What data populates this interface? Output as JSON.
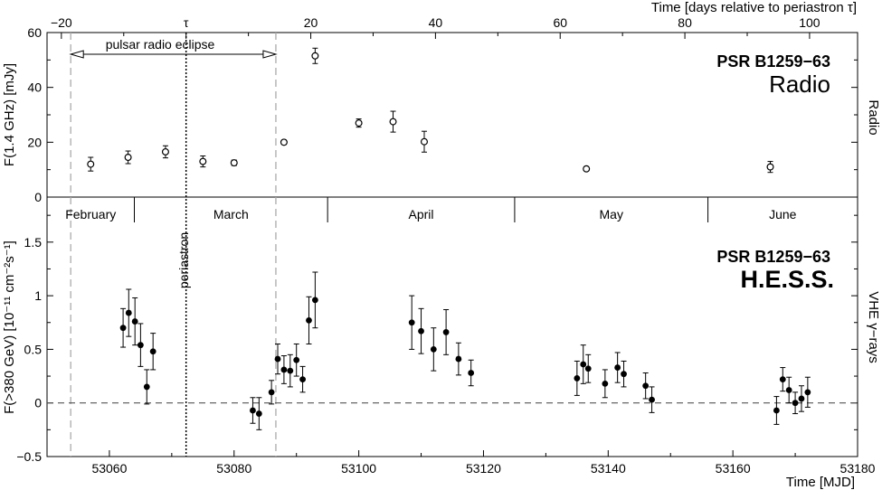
{
  "chart_data": [
    {
      "type": "scatter",
      "panel": "radio",
      "source_name": "PSR B1259−63",
      "instrument_label": "Radio",
      "ylabel": "F(1.4 GHz) [mJy]",
      "side_label": "Radio",
      "ylim": [
        0,
        60
      ],
      "xlim": [
        53050,
        53180
      ],
      "y_ticks": [
        0,
        20,
        40,
        60
      ],
      "top_axis": {
        "label": "Time [days relative to periastron τ]",
        "ticks": [
          {
            "label": "−20",
            "value": -20
          },
          {
            "label": "τ",
            "value": 0
          },
          {
            "label": "20",
            "value": 20
          },
          {
            "label": "40",
            "value": 40
          },
          {
            "label": "60",
            "value": 60
          },
          {
            "label": "80",
            "value": 80
          },
          {
            "label": "100",
            "value": 100
          }
        ],
        "periastron_mjd": 53072.3
      },
      "eclipse_label": "pulsar radio eclipse",
      "eclipse_range": [
        53053.8,
        53086.7
      ],
      "series": [
        {
          "marker": "open-circle",
          "points": [
            {
              "x": 53057.0,
              "y": 12.0,
              "err": 2.5
            },
            {
              "x": 53063.0,
              "y": 14.5,
              "err": 2.3
            },
            {
              "x": 53069.0,
              "y": 16.5,
              "err": 2.2
            },
            {
              "x": 53075.0,
              "y": 13.0,
              "err": 2.0
            },
            {
              "x": 53080.0,
              "y": 12.5,
              "err": 1.0
            },
            {
              "x": 53088.0,
              "y": 20.0,
              "err": 0.8
            },
            {
              "x": 53093.0,
              "y": 51.5,
              "err": 2.8
            },
            {
              "x": 53100.0,
              "y": 27.0,
              "err": 1.5
            },
            {
              "x": 53105.5,
              "y": 27.5,
              "err": 3.8
            },
            {
              "x": 53110.5,
              "y": 20.2,
              "err": 3.8
            },
            {
              "x": 53136.5,
              "y": 10.3,
              "err": 0.6
            },
            {
              "x": 53166.0,
              "y": 11.0,
              "err": 2.0
            }
          ]
        }
      ]
    },
    {
      "type": "scatter",
      "panel": "hess",
      "source_name": "PSR B1259−63",
      "instrument_label": "H.E.S.S.",
      "ylabel": "F(>380 GeV) [10⁻¹¹ cm⁻²s⁻¹]",
      "side_label": "VHE γ−rays",
      "xlabel": "Time [MJD]",
      "ylim": [
        -0.5,
        1.92
      ],
      "xlim": [
        53050,
        53180
      ],
      "y_ticks": [
        {
          "label": "−0.5",
          "value": -0.5
        },
        {
          "label": "0",
          "value": 0
        },
        {
          "label": "0.5",
          "value": 0.5
        },
        {
          "label": "1",
          "value": 1
        },
        {
          "label": "1.5",
          "value": 1.5
        }
      ],
      "x_ticks": [
        53060,
        53080,
        53100,
        53120,
        53140,
        53160,
        53180
      ],
      "months": [
        {
          "name": "February",
          "end": 53064.0
        },
        {
          "name": "March",
          "end": 53095.0
        },
        {
          "name": "April",
          "end": 53125.0
        },
        {
          "name": "May",
          "end": 53156.0
        },
        {
          "name": "June",
          "end": null
        }
      ],
      "periastron_label": "periastron",
      "series": [
        {
          "marker": "filled-circle",
          "points": [
            {
              "x": 53062.2,
              "y": 0.7,
              "err": 0.18
            },
            {
              "x": 53063.1,
              "y": 0.84,
              "err": 0.22
            },
            {
              "x": 53064.1,
              "y": 0.76,
              "err": 0.22
            },
            {
              "x": 53065.0,
              "y": 0.54,
              "err": 0.2
            },
            {
              "x": 53066.0,
              "y": 0.15,
              "err": 0.16
            },
            {
              "x": 53067.0,
              "y": 0.48,
              "err": 0.17
            },
            {
              "x": 53083.0,
              "y": -0.07,
              "err": 0.12
            },
            {
              "x": 53084.0,
              "y": -0.1,
              "err": 0.15
            },
            {
              "x": 53086.0,
              "y": 0.1,
              "err": 0.11
            },
            {
              "x": 53087.0,
              "y": 0.41,
              "err": 0.14
            },
            {
              "x": 53088.0,
              "y": 0.31,
              "err": 0.13
            },
            {
              "x": 53089.0,
              "y": 0.3,
              "err": 0.15
            },
            {
              "x": 53090.0,
              "y": 0.4,
              "err": 0.15
            },
            {
              "x": 53091.0,
              "y": 0.22,
              "err": 0.12
            },
            {
              "x": 53092.0,
              "y": 0.77,
              "err": 0.22
            },
            {
              "x": 53093.0,
              "y": 0.96,
              "err": 0.26
            },
            {
              "x": 53108.5,
              "y": 0.75,
              "err": 0.25
            },
            {
              "x": 53110.0,
              "y": 0.67,
              "err": 0.21
            },
            {
              "x": 53112.0,
              "y": 0.5,
              "err": 0.2
            },
            {
              "x": 53114.0,
              "y": 0.66,
              "err": 0.21
            },
            {
              "x": 53116.0,
              "y": 0.41,
              "err": 0.15
            },
            {
              "x": 53118.0,
              "y": 0.28,
              "err": 0.12
            },
            {
              "x": 53135.0,
              "y": 0.23,
              "err": 0.16
            },
            {
              "x": 53136.0,
              "y": 0.36,
              "err": 0.18
            },
            {
              "x": 53136.8,
              "y": 0.32,
              "err": 0.13
            },
            {
              "x": 53139.5,
              "y": 0.18,
              "err": 0.13
            },
            {
              "x": 53141.5,
              "y": 0.33,
              "err": 0.14
            },
            {
              "x": 53142.5,
              "y": 0.27,
              "err": 0.12
            },
            {
              "x": 53146.0,
              "y": 0.16,
              "err": 0.12
            },
            {
              "x": 53147.0,
              "y": 0.03,
              "err": 0.12
            },
            {
              "x": 53167.0,
              "y": -0.07,
              "err": 0.13
            },
            {
              "x": 53168.0,
              "y": 0.22,
              "err": 0.11
            },
            {
              "x": 53169.0,
              "y": 0.12,
              "err": 0.12
            },
            {
              "x": 53170.0,
              "y": 0.0,
              "err": 0.1
            },
            {
              "x": 53171.0,
              "y": 0.04,
              "err": 0.12
            },
            {
              "x": 53172.0,
              "y": 0.1,
              "err": 0.14
            }
          ]
        }
      ]
    }
  ]
}
